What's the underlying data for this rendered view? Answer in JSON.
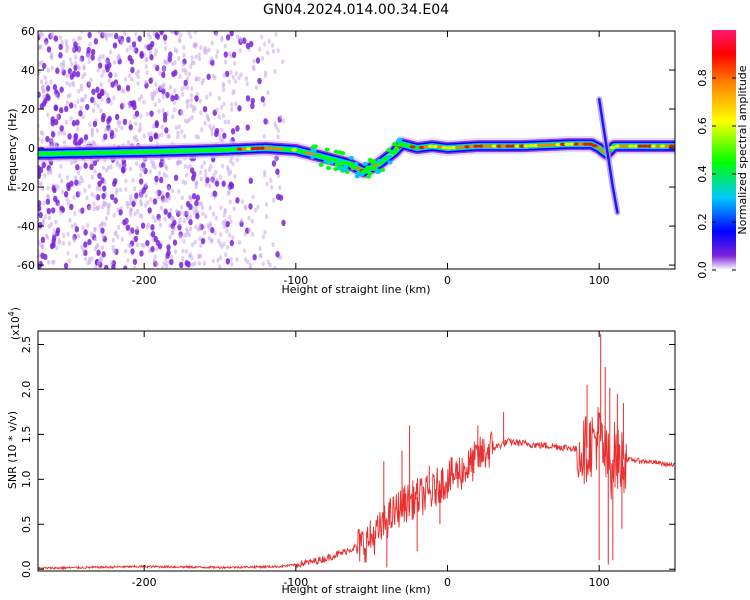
{
  "figure": {
    "title": "GN04.2024.014.00.34.E04",
    "colors": {
      "snr_line": "#e83030",
      "axis": "#000000",
      "noise_purple": "#7a22d8",
      "noise_light": "#c9a6ee"
    }
  },
  "chart_data": [
    {
      "type": "heatmap",
      "title": "GN04.2024.014.00.34.E04",
      "xlabel": "Height of straight line (km)",
      "ylabel": "Frequency (Hz)",
      "xlim": [
        -270,
        150
      ],
      "ylim": [
        -62,
        60
      ],
      "x_ticks": [
        -200,
        -100,
        0,
        100
      ],
      "x_tick_labels": [
        "-200",
        "-100",
        "0",
        "100"
      ],
      "y_ticks": [
        -60,
        -40,
        -20,
        0,
        20,
        40,
        60
      ],
      "y_tick_labels": [
        "-60",
        "-40",
        "-20",
        "0",
        "20",
        "40",
        "60"
      ],
      "colorbar": {
        "label": "Normalized spectral amplitude",
        "range": [
          0,
          1
        ],
        "ticks": [
          0.0,
          0.2,
          0.4,
          0.6,
          0.8
        ],
        "tick_labels": [
          "0.0",
          "0.2",
          "0.4",
          "0.6",
          "0.8"
        ],
        "colormap": [
          "#ffffff",
          "#7a22d8",
          "#0000ff",
          "#00c8ff",
          "#00ff00",
          "#ffff00",
          "#ff8000",
          "#ff0000",
          "#ff1a6e"
        ]
      },
      "ridge_center": {
        "x": [
          -270,
          -200,
          -150,
          -120,
          -100,
          -80,
          -65,
          -55,
          -45,
          -35,
          -30,
          -20,
          -10,
          0,
          20,
          50,
          80,
          95,
          100,
          105,
          110,
          150
        ],
        "y": [
          -3,
          -2,
          -1,
          0,
          -1,
          -5,
          -8,
          -12,
          -8,
          -2,
          2,
          0,
          1,
          0,
          1,
          1,
          2,
          2,
          0,
          -3,
          1,
          1
        ]
      },
      "branch": {
        "x": [
          100,
          103,
          106,
          109,
          112
        ],
        "y": [
          25,
          10,
          -5,
          -20,
          -33
        ]
      },
      "scatter_extent_x": [
        -270,
        -108
      ],
      "grid": false
    },
    {
      "type": "line",
      "title": "",
      "xlabel": "Height of straight line (km)",
      "ylabel": "SNR (10 * v/v)",
      "y_multiplier": "(x10",
      "y_multiplier_exp": "4",
      "y_multiplier_close": ")",
      "xlim": [
        -270,
        150
      ],
      "ylim": [
        -0.02,
        2.65
      ],
      "x_ticks": [
        -200,
        -100,
        0,
        100
      ],
      "x_tick_labels": [
        "-200",
        "-100",
        "0",
        "100"
      ],
      "y_ticks": [
        0.0,
        0.5,
        1.0,
        1.5,
        2.0,
        2.5
      ],
      "y_tick_labels": [
        "0.0",
        "0.5",
        "1.0",
        "1.5",
        "2.0",
        "2.5"
      ],
      "series": [
        {
          "color": "#e83030",
          "x": [
            -270,
            -200,
            -150,
            -110,
            -100,
            -90,
            -80,
            -70,
            -60,
            -55,
            -50,
            -45,
            -40,
            -35,
            -30,
            -25,
            -20,
            -15,
            -10,
            -5,
            0,
            5,
            10,
            15,
            20,
            25,
            30,
            35,
            40,
            50,
            60,
            70,
            80,
            85,
            90,
            95,
            100,
            103,
            105,
            108,
            110,
            112,
            115,
            120,
            130,
            140,
            150
          ],
          "y": [
            0.01,
            0.03,
            0.02,
            0.03,
            0.05,
            0.08,
            0.12,
            0.18,
            0.25,
            0.28,
            0.35,
            0.42,
            0.55,
            0.62,
            0.72,
            0.75,
            0.8,
            0.82,
            0.85,
            0.95,
            1.0,
            1.05,
            1.1,
            1.15,
            1.25,
            1.3,
            1.35,
            1.38,
            1.42,
            1.4,
            1.38,
            1.37,
            1.35,
            1.33,
            1.32,
            1.4,
            1.5,
            1.3,
            1.2,
            1.15,
            1.28,
            1.2,
            1.22,
            1.22,
            1.2,
            1.18,
            1.15
          ]
        }
      ],
      "spikes": [
        {
          "x": -42,
          "y": 1.2
        },
        {
          "x": -30,
          "y": 1.32
        },
        {
          "x": -25,
          "y": 1.6
        },
        {
          "x": -12,
          "y": 1.15
        },
        {
          "x": 20,
          "y": 1.6
        },
        {
          "x": 37,
          "y": 1.75
        },
        {
          "x": 92,
          "y": 2.05
        },
        {
          "x": 101,
          "y": 2.62
        },
        {
          "x": 104,
          "y": 2.25
        },
        {
          "x": 107,
          "y": 2.02
        },
        {
          "x": 112,
          "y": 1.95
        },
        {
          "x": 116,
          "y": 1.85
        }
      ],
      "dips": [
        {
          "x": -40,
          "y": 0.02
        },
        {
          "x": -20,
          "y": 0.2
        },
        {
          "x": -5,
          "y": 0.5
        },
        {
          "x": 100,
          "y": 0.1
        },
        {
          "x": 106,
          "y": 0.05
        },
        {
          "x": 109,
          "y": 0.1
        },
        {
          "x": 115,
          "y": 0.45
        }
      ],
      "grid": false
    }
  ]
}
